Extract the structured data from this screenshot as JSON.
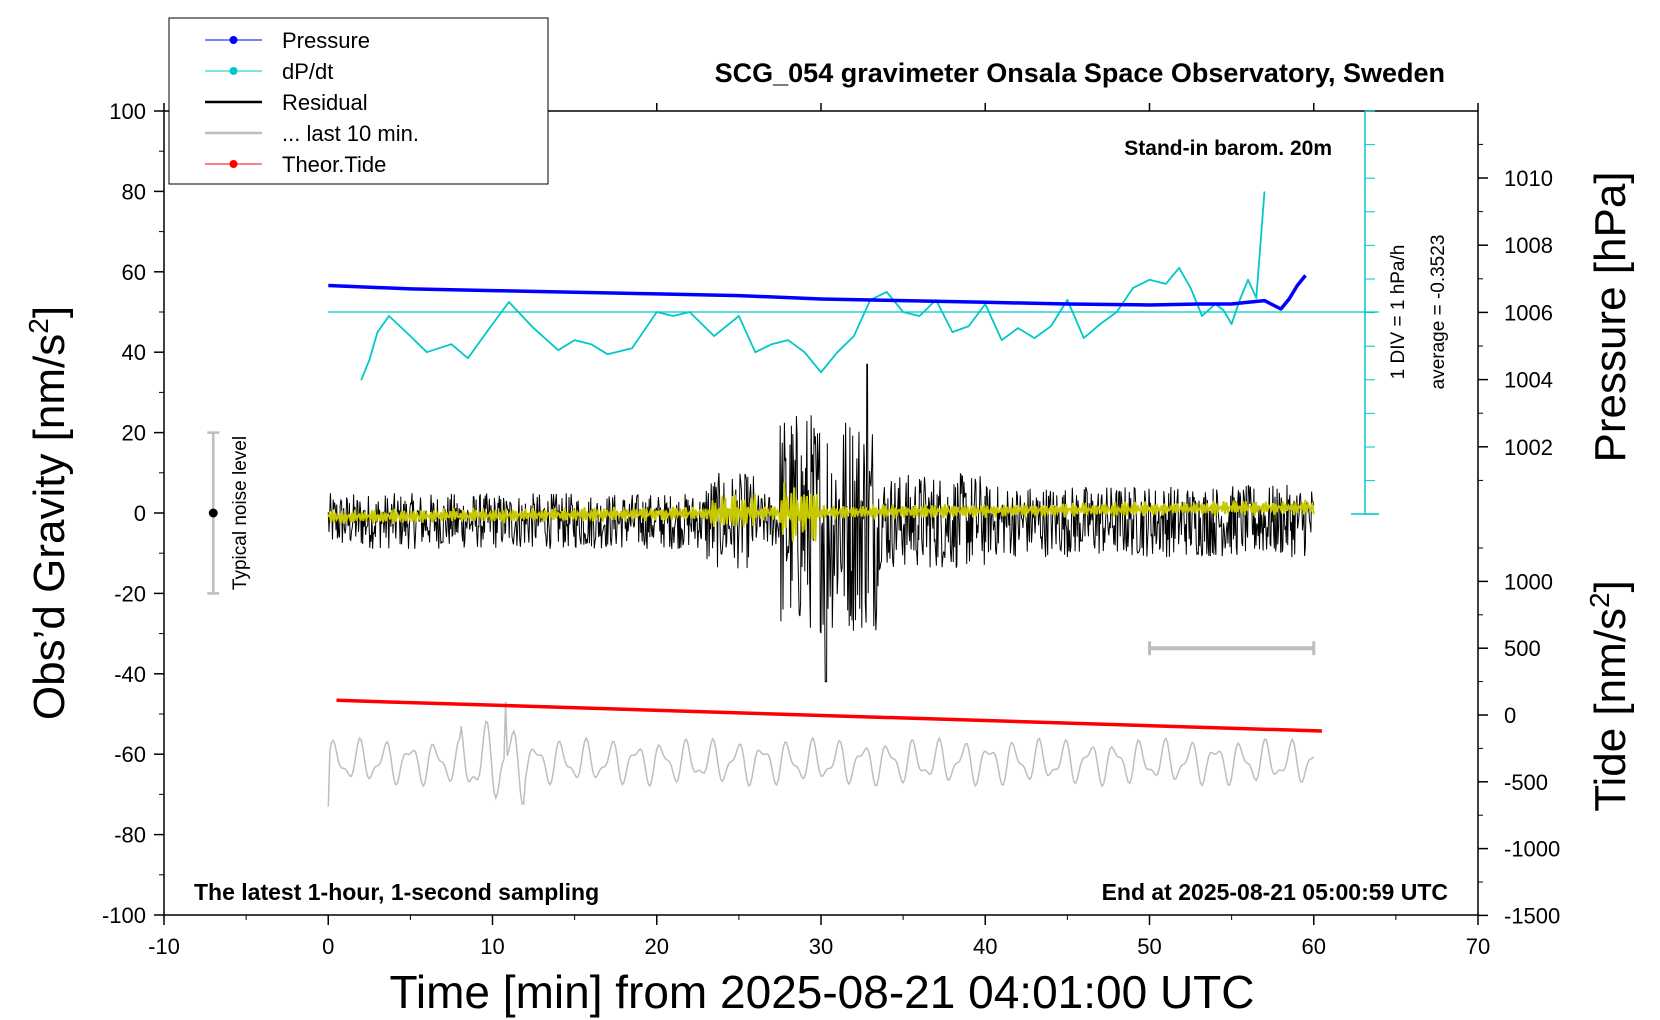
{
  "chart_data": {
    "type": "line",
    "title": "SCG_054 gravimeter Onsala Space Observatory, Sweden",
    "xlabel": "Time [min] from 2025-08-21 04:01:00 UTC",
    "ylabel_main": "Obs’d Gravity [nm/s",
    "ylabel_main_sup": "2",
    "ylabel_main_end": "]",
    "ylabel_pressure": "Pressure [hPa]",
    "ylabel_tide": "Tide [nm/s",
    "ylabel_tide_sup": "2",
    "ylabel_tide_end": "]",
    "xlim": [
      -10,
      70
    ],
    "ylim": [
      -100,
      100
    ],
    "pressure_ylim": [
      1000,
      1012
    ],
    "tide_ylim": [
      -1500,
      1500
    ],
    "x_ticks": [
      "-10",
      "0",
      "10",
      "20",
      "30",
      "40",
      "50",
      "60",
      "70"
    ],
    "y_ticks": [
      "100",
      "80",
      "60",
      "40",
      "20",
      "0",
      "-20",
      "-40",
      "-60",
      "-80",
      "-100"
    ],
    "pressure_ticks": [
      "1010",
      "1008",
      "1006",
      "1004",
      "1002"
    ],
    "tide_ticks": [
      "1000",
      "500",
      "0",
      "-500",
      "-1000",
      "-1500"
    ],
    "legend": {
      "position": "top-left",
      "entries": [
        {
          "label": "Pressure",
          "color": "#0000ff",
          "marker": true
        },
        {
          "label": "dP/dt",
          "color": "#00c8c8",
          "marker": true
        },
        {
          "label": "Residual",
          "color": "#000000",
          "marker": false
        },
        {
          "label": "... last 10 min.",
          "color": "#bebebe",
          "marker": false
        },
        {
          "label": "Theor.Tide",
          "color": "#ff0000",
          "marker": true
        }
      ]
    },
    "annotations": {
      "barometer": "Stand-in barom. 20m",
      "sampling": "The latest 1-hour, 1-second sampling",
      "end_time": "End at 2025-08-21 05:00:59 UTC",
      "noise": "Typical noise level",
      "dpdt_scale": "1 DIV = 1 hPa/h",
      "dpdt_average": "average = -0.3523"
    },
    "noise_bar": {
      "x": -7,
      "center": 0,
      "half_range": 20
    },
    "gray_bar": {
      "x_from": 50,
      "x_to": 60,
      "y": 500
    },
    "series": [
      {
        "name": "Pressure",
        "axis": "pressure",
        "color": "#0000ff",
        "x": [
          0,
          5,
          10,
          15,
          20,
          25,
          30,
          35,
          40,
          45,
          50,
          53,
          55,
          56,
          57,
          58,
          58.5,
          59,
          59.5
        ],
        "values": [
          1006.8,
          1006.7,
          1006.65,
          1006.6,
          1006.55,
          1006.5,
          1006.4,
          1006.35,
          1006.3,
          1006.25,
          1006.22,
          1006.25,
          1006.25,
          1006.3,
          1006.35,
          1006.1,
          1006.4,
          1006.8,
          1007.1
        ]
      },
      {
        "name": "dP/dt",
        "axis": "gravity",
        "color": "#00c8c8",
        "x": [
          2,
          2.5,
          3,
          3.7,
          5,
          6,
          7.5,
          8.5,
          10,
          11,
          12.5,
          14,
          15,
          16,
          17,
          18.5,
          20,
          21,
          22,
          23.5,
          25,
          26,
          27,
          28,
          29,
          30,
          31,
          32,
          33,
          34,
          35,
          36,
          37,
          38,
          39,
          40,
          41,
          42,
          43,
          44,
          45,
          46,
          47,
          48,
          49,
          50,
          51,
          51.8,
          52.5,
          53.2,
          54,
          54.5,
          55,
          55.5,
          56,
          56.5,
          57
        ],
        "values": [
          33,
          38,
          45,
          49,
          44,
          40,
          42,
          38.5,
          47,
          52.5,
          46,
          40.5,
          43,
          42,
          39.5,
          41,
          50,
          49,
          50,
          44,
          49,
          40,
          42,
          43,
          40,
          35,
          40,
          44,
          53,
          55,
          50,
          49,
          53,
          45,
          46.5,
          52,
          43,
          46,
          43.5,
          46.5,
          53,
          43.5,
          47,
          50,
          56,
          58,
          57,
          61,
          56,
          49,
          52,
          50.5,
          47,
          53,
          58,
          53.5,
          80
        ]
      },
      {
        "name": "Residual",
        "axis": "gravity",
        "color": "#000000",
        "x_range": [
          0,
          60
        ],
        "baseline": -2,
        "typical_amplitude": 7,
        "max": 37,
        "min": -42
      },
      {
        "name": "... last 10 min.",
        "axis": "gravity",
        "color": "#bebebe",
        "x_range": [
          0,
          60
        ],
        "baseline": -62,
        "typical_amplitude": 5,
        "max": -47,
        "min": -74
      },
      {
        "name": "Theor.Tide",
        "axis": "tide",
        "color": "#ff0000",
        "x": [
          0.5,
          60.5
        ],
        "values": [
          110,
          -120
        ]
      }
    ]
  }
}
